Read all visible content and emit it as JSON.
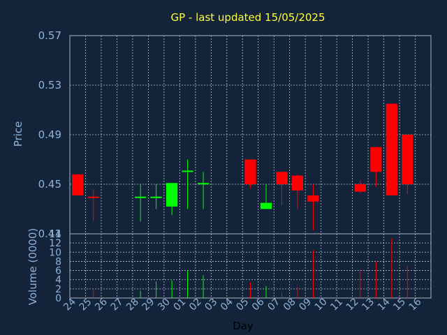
{
  "chart_data": {
    "type": "candlestick",
    "title": "GP - last updated 15/05/2025",
    "xlabel": "Day",
    "ylabel": "Price",
    "volume_label": "Volume (0000)",
    "ylim": [
      0.41,
      0.57
    ],
    "price_ticks": [
      "0.57",
      "0.53",
      "0.49",
      "0.45",
      "0.41"
    ],
    "volume_ylim": [
      0,
      14
    ],
    "volume_ticks": [
      "14",
      "12",
      "10",
      "8",
      "6",
      "4",
      "2",
      "0"
    ],
    "grid": true,
    "up_color": "#00ff00",
    "down_color": "#ff0000",
    "days": [
      "24",
      "25",
      "26",
      "27",
      "28",
      "29",
      "30",
      "01",
      "02",
      "03",
      "04",
      "05",
      "06",
      "07",
      "08",
      "09",
      "10",
      "11",
      "12",
      "13",
      "14",
      "15",
      "16"
    ],
    "candles": [
      {
        "day": "24",
        "open": 0.458,
        "high": 0.458,
        "low": 0.441,
        "close": 0.441
      },
      {
        "day": "25",
        "open": 0.44,
        "high": 0.446,
        "low": 0.42,
        "close": 0.439
      },
      {
        "day": "28",
        "open": 0.44,
        "high": 0.45,
        "low": 0.42,
        "close": 0.44
      },
      {
        "day": "29",
        "open": 0.44,
        "high": 0.45,
        "low": 0.43,
        "close": 0.44
      },
      {
        "day": "30",
        "open": 0.432,
        "high": 0.45,
        "low": 0.425,
        "close": 0.451
      },
      {
        "day": "01",
        "open": 0.46,
        "high": 0.47,
        "low": 0.43,
        "close": 0.461
      },
      {
        "day": "02",
        "open": 0.45,
        "high": 0.46,
        "low": 0.43,
        "close": 0.451
      },
      {
        "day": "05",
        "open": 0.47,
        "high": 0.47,
        "low": 0.447,
        "close": 0.45
      },
      {
        "day": "06",
        "open": 0.43,
        "high": 0.45,
        "low": 0.43,
        "close": 0.435
      },
      {
        "day": "07",
        "open": 0.46,
        "high": 0.46,
        "low": 0.433,
        "close": 0.45
      },
      {
        "day": "08",
        "open": 0.457,
        "high": 0.458,
        "low": 0.43,
        "close": 0.445
      },
      {
        "day": "09",
        "open": 0.441,
        "high": 0.45,
        "low": 0.413,
        "close": 0.436
      },
      {
        "day": "12",
        "open": 0.45,
        "high": 0.453,
        "low": 0.443,
        "close": 0.444
      },
      {
        "day": "13",
        "open": 0.48,
        "high": 0.48,
        "low": 0.448,
        "close": 0.46
      },
      {
        "day": "14",
        "open": 0.515,
        "high": 0.515,
        "low": 0.441,
        "close": 0.441
      },
      {
        "day": "15",
        "open": 0.49,
        "high": 0.49,
        "low": 0.442,
        "close": 0.45
      }
    ],
    "volume": [
      {
        "day": "25",
        "value": 2.0,
        "color": "#ff0000"
      },
      {
        "day": "28",
        "value": 1.6,
        "color": "#00ff00"
      },
      {
        "day": "29",
        "value": 3.6,
        "color": "#00ff00"
      },
      {
        "day": "30",
        "value": 3.8,
        "color": "#00ff00"
      },
      {
        "day": "01",
        "value": 6.0,
        "color": "#00ff00"
      },
      {
        "day": "02",
        "value": 5.0,
        "color": "#00ff00"
      },
      {
        "day": "05",
        "value": 3.4,
        "color": "#ff0000"
      },
      {
        "day": "06",
        "value": 2.6,
        "color": "#00ff00"
      },
      {
        "day": "07",
        "value": 1.2,
        "color": "#ff0000"
      },
      {
        "day": "08",
        "value": 2.4,
        "color": "#ff0000"
      },
      {
        "day": "09",
        "value": 10.4,
        "color": "#ff0000"
      },
      {
        "day": "12",
        "value": 6.2,
        "color": "#ff0000"
      },
      {
        "day": "13",
        "value": 8.0,
        "color": "#ff0000"
      },
      {
        "day": "14",
        "value": 13.0,
        "color": "#ff0000"
      },
      {
        "day": "15",
        "value": 7.0,
        "color": "#ff0000"
      }
    ]
  }
}
